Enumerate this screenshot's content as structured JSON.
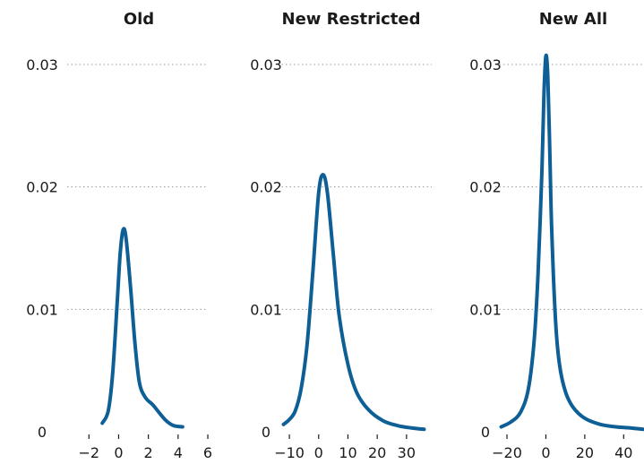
{
  "chart_data": [
    {
      "type": "line",
      "title": "Old",
      "xlabel": "",
      "ylabel": "",
      "ylim": [
        0,
        0.03
      ],
      "xlim": [
        -2.8,
        6.3
      ],
      "xticks": [
        -2,
        0,
        2,
        4,
        6
      ],
      "xtick_labels": [
        "−2",
        "0",
        "2",
        "4",
        "6"
      ],
      "yticks": [
        0,
        0.01,
        0.02,
        0.03
      ],
      "ytick_labels": [
        "0",
        "0.01",
        "0.02",
        "0.03"
      ],
      "grid": "horizontal dotted",
      "series": [
        {
          "color": "#0d5f95",
          "x": [
            -1.1,
            -0.7,
            -0.4,
            -0.1,
            0.1,
            0.3,
            0.5,
            0.8,
            1.1,
            1.4,
            1.8,
            2.3,
            2.7,
            3.2,
            3.7,
            4.3
          ],
          "y": [
            0.0007,
            0.0017,
            0.0048,
            0.0105,
            0.0145,
            0.0165,
            0.0158,
            0.0118,
            0.0072,
            0.004,
            0.0028,
            0.0022,
            0.0016,
            0.0009,
            0.0005,
            0.0004
          ]
        }
      ]
    },
    {
      "type": "line",
      "title": "New Restricted",
      "xlabel": "",
      "ylabel": "",
      "ylim": [
        0,
        0.03
      ],
      "xlim": [
        -14,
        38
      ],
      "xticks": [
        -10,
        0,
        10,
        20,
        30
      ],
      "xtick_labels": [
        "−10",
        "0",
        "10",
        "20",
        "30"
      ],
      "yticks": [
        0,
        0.01,
        0.02,
        0.03
      ],
      "ytick_labels": [
        "0",
        "0.01",
        "0.02",
        "0.03"
      ],
      "grid": "horizontal dotted",
      "series": [
        {
          "color": "#0d5f95",
          "x": [
            -12,
            -10,
            -8,
            -6,
            -4,
            -2,
            0,
            1.5,
            3,
            5,
            7,
            10,
            13,
            17,
            22,
            27,
            32,
            36
          ],
          "y": [
            0.0006,
            0.001,
            0.0017,
            0.0035,
            0.007,
            0.013,
            0.0195,
            0.021,
            0.0195,
            0.0145,
            0.0095,
            0.0055,
            0.0032,
            0.0018,
            0.0009,
            0.0005,
            0.0003,
            0.0002
          ]
        }
      ]
    },
    {
      "type": "line",
      "title": "New All",
      "xlabel": "",
      "ylabel": "",
      "ylim": [
        0,
        0.03
      ],
      "xlim": [
        -26,
        50
      ],
      "xticks": [
        -20,
        0,
        20,
        40
      ],
      "xtick_labels": [
        "−20",
        "0",
        "20",
        "40"
      ],
      "yticks": [
        0,
        0.01,
        0.02,
        0.03
      ],
      "ytick_labels": [
        "0",
        "0.01",
        "0.02",
        "0.03"
      ],
      "grid": "horizontal dotted",
      "series": [
        {
          "color": "#0d5f95",
          "x": [
            -23,
            -18,
            -13,
            -9,
            -6,
            -4,
            -2,
            -1,
            0,
            1,
            2,
            3,
            5,
            7,
            10,
            14,
            20,
            28,
            36,
            44,
            50
          ],
          "y": [
            0.0004,
            0.0008,
            0.0016,
            0.0035,
            0.0075,
            0.013,
            0.0215,
            0.0275,
            0.0307,
            0.029,
            0.023,
            0.0165,
            0.009,
            0.0055,
            0.0033,
            0.002,
            0.0011,
            0.0006,
            0.0004,
            0.0003,
            0.0002
          ]
        }
      ]
    }
  ]
}
